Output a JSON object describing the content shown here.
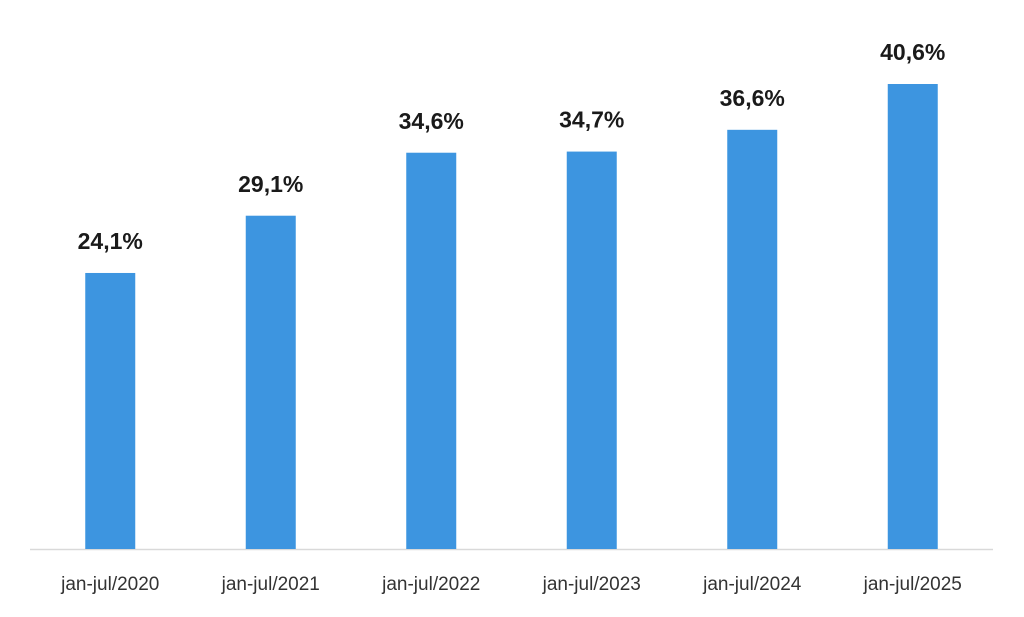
{
  "chart_data": {
    "type": "bar",
    "categories": [
      "jan-jul/2020",
      "jan-jul/2021",
      "jan-jul/2022",
      "jan-jul/2023",
      "jan-jul/2024",
      "jan-jul/2025"
    ],
    "values": [
      24.1,
      29.1,
      34.6,
      34.7,
      36.6,
      40.6
    ],
    "value_labels": [
      "24,1%",
      "29,1%",
      "34,6%",
      "34,7%",
      "36,6%",
      "40,6%"
    ],
    "color": "#3d95e0"
  }
}
